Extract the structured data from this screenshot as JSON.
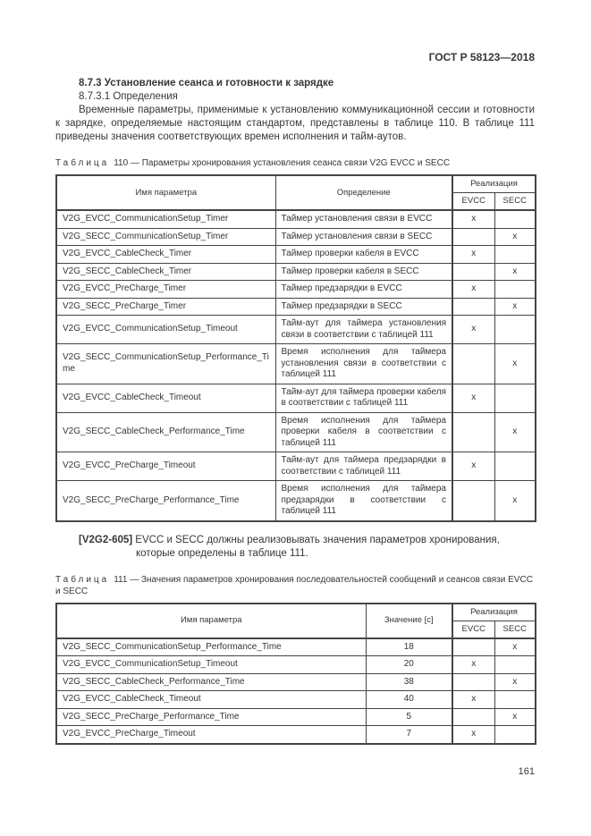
{
  "page": {
    "doc_ref": "ГОСТ Р 58123—2018",
    "page_number": "161"
  },
  "section": {
    "heading": "8.7.3 Установление сеанса и готовности к зарядке",
    "subheading": "8.7.3.1 Определения",
    "intro": "Временные параметры, применимые к установлению коммуникационной сессии и готовности к зарядке, определяемые настоящим стандартом, представлены в таблице 110. В таблице 111 приведены значения соответствующих времен исполнения и тайм-аутов."
  },
  "requirement": {
    "tag": "[V2G2-605]",
    "text": "EVCC и SECC должны реализовывать значения параметров хронирования, которые определены в таблице 111."
  },
  "table110": {
    "caption_label": "Таблица",
    "caption_rest": "110 — Параметры хронирования установления сеанса связи V2G EVCC и SECC",
    "headers": {
      "name": "Имя параметра",
      "definition": "Определение",
      "realization": "Реализация",
      "evcc": "EVCC",
      "secc": "SECC"
    },
    "rows": [
      {
        "name": "V2G_EVCC_CommunicationSetup_Timer",
        "definition": "Таймер установления связи в EVCC",
        "evcc": "x",
        "secc": ""
      },
      {
        "name": "V2G_SECC_CommunicationSetup_Timer",
        "definition": "Таймер установления связи в SECC",
        "evcc": "",
        "secc": "x"
      },
      {
        "name": "V2G_EVCC_CableCheck_Timer",
        "definition": "Таймер проверки кабеля в EVCC",
        "evcc": "x",
        "secc": ""
      },
      {
        "name": "V2G_SECC_CableCheck_Timer",
        "definition": "Таймер проверки кабеля в SECC",
        "evcc": "",
        "secc": "x"
      },
      {
        "name": "V2G_EVCC_PreCharge_Timer",
        "definition": "Таймер предзарядки в EVCC",
        "evcc": "x",
        "secc": ""
      },
      {
        "name": "V2G_SECC_PreCharge_Timer",
        "definition": "Таймер предзарядки в SECC",
        "evcc": "",
        "secc": "x"
      },
      {
        "name": "V2G_EVCC_CommunicationSetup_Timeout",
        "definition": "Тайм-аут для таймера установления связи в соответствии с таблицей 111",
        "evcc": "x",
        "secc": ""
      },
      {
        "name": "V2G_SECC_CommunicationSetup_Performance_Time",
        "definition": "Время исполнения для таймера установления связи в соответствии с таблицей 111",
        "evcc": "",
        "secc": "x"
      },
      {
        "name": "V2G_EVCC_CableCheck_Timeout",
        "definition": "Тайм-аут для таймера проверки кабеля в соответствии с таблицей 111",
        "evcc": "x",
        "secc": ""
      },
      {
        "name": "V2G_SECC_CableCheck_Performance_Time",
        "definition": "Время исполнения для таймера проверки кабеля в соответствии с таблицей 111",
        "evcc": "",
        "secc": "x"
      },
      {
        "name": "V2G_EVCC_PreCharge_Timeout",
        "definition": "Тайм-аут для таймера предзарядки в соответствии с таблицей 111",
        "evcc": "x",
        "secc": ""
      },
      {
        "name": "V2G_SECC_PreCharge_Performance_Time",
        "definition": "Время исполнения для таймера предзарядки в соответствии с таблицей 111",
        "evcc": "",
        "secc": "x"
      }
    ]
  },
  "table111": {
    "caption_label": "Таблица",
    "caption_rest": "111 — Значения параметров хронирования последовательностей сообщений и сеансов связи EVCC и SECC",
    "headers": {
      "name": "Имя параметра",
      "value": "Значение [с]",
      "realization": "Реализация",
      "evcc": "EVCC",
      "secc": "SECC"
    },
    "rows": [
      {
        "name": "V2G_SECC_CommunicationSetup_Performance_Time",
        "value": "18",
        "evcc": "",
        "secc": "x"
      },
      {
        "name": "V2G_EVCC_CommunicationSetup_Timeout",
        "value": "20",
        "evcc": "x",
        "secc": ""
      },
      {
        "name": "V2G_SECC_CableCheck_Performance_Time",
        "value": "38",
        "evcc": "",
        "secc": "x"
      },
      {
        "name": "V2G_EVCC_CableCheck_Timeout",
        "value": "40",
        "evcc": "x",
        "secc": ""
      },
      {
        "name": "V2G_SECC_PreCharge_Performance_Time",
        "value": "5",
        "evcc": "",
        "secc": "x"
      },
      {
        "name": "V2G_EVCC_PreCharge_Timeout",
        "value": "7",
        "evcc": "x",
        "secc": ""
      }
    ]
  }
}
